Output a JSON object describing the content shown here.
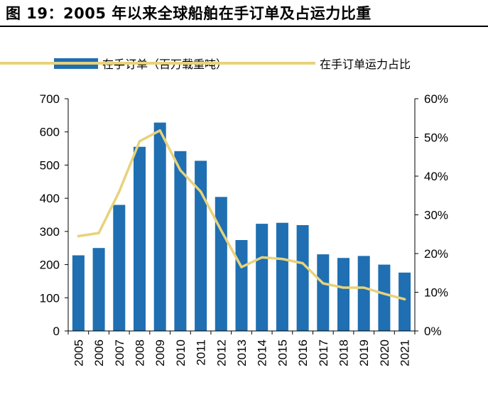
{
  "figure": {
    "title": "图 19：2005 年以来全球船舶在手订单及占运力比重"
  },
  "colors": {
    "bar": "#1f6fb2",
    "line": "#e8d27a",
    "axis": "#000000"
  },
  "chart_data": {
    "type": "bar",
    "title": "",
    "xlabel": "",
    "ylabel": "",
    "categories": [
      "2005",
      "2006",
      "2007",
      "2008",
      "2009",
      "2010",
      "2011",
      "2012",
      "2013",
      "2014",
      "2015",
      "2016",
      "2017",
      "2018",
      "2019",
      "2020",
      "2021"
    ],
    "left_axis": {
      "ylim": [
        0,
        700
      ],
      "ticks": [
        "0",
        "100",
        "200",
        "300",
        "400",
        "500",
        "600",
        "700"
      ]
    },
    "right_axis": {
      "ylim": [
        0,
        60
      ],
      "ticks": [
        "0%",
        "10%",
        "20%",
        "30%",
        "40%",
        "50%",
        "60%"
      ]
    },
    "grid": false,
    "legend_position": "top",
    "series": [
      {
        "name": "在手订单（百万载重吨）",
        "type": "bar",
        "axis": "left",
        "values": [
          228,
          250,
          380,
          555,
          628,
          542,
          513,
          404,
          274,
          323,
          326,
          319,
          231,
          220,
          226,
          200,
          176
        ]
      },
      {
        "name": "在手订单运力占比",
        "type": "line",
        "axis": "right",
        "values": [
          24.5,
          25.3,
          36,
          49,
          51.8,
          41.5,
          36,
          26,
          16.5,
          19,
          18.6,
          17.5,
          12.3,
          11.2,
          11.2,
          9.6,
          8.2
        ]
      }
    ]
  }
}
